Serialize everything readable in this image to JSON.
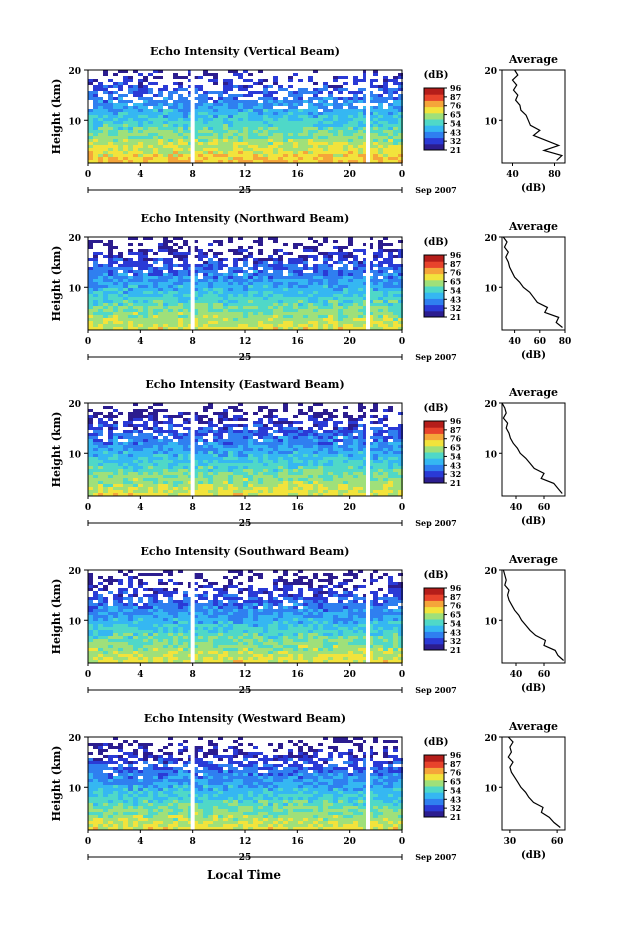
{
  "figure": {
    "x_title": "Local Time",
    "date_label": "Sep 2007",
    "day_label": "25",
    "colorbar_unit": "(dB)",
    "y_label": "Height (km)",
    "avg_title": "Average",
    "avg_xlabel": "(dB)"
  },
  "colors": {
    "scale": [
      "#2c1d8f",
      "#2a3ad6",
      "#2f7ff0",
      "#35b7f2",
      "#4fd8c8",
      "#9fe07a",
      "#f2e33c",
      "#f5a53a",
      "#e8432c",
      "#b51d1a"
    ],
    "line": "#000000",
    "background": "#ffffff"
  },
  "chart_data": [
    {
      "type": "heatmap",
      "title": "Echo Intensity (Vertical Beam)",
      "x_ticks": [
        "0",
        "4",
        "8",
        "12",
        "16",
        "20",
        "0"
      ],
      "xlim": [
        0,
        24
      ],
      "y_ticks": [
        "10",
        "20"
      ],
      "ylim": [
        1.5,
        20
      ],
      "colorbar_ticks": [
        "96",
        "87",
        "76",
        "65",
        "54",
        "43",
        "32",
        "21"
      ],
      "gaps_hours": [
        8.0,
        21.4
      ],
      "average": {
        "x_ticks": [
          "40",
          "80"
        ],
        "xlim": [
          30,
          90
        ],
        "heights": [
          2,
          3,
          4,
          5,
          6,
          7,
          8,
          9,
          10,
          11,
          12,
          13,
          14,
          15,
          16,
          17,
          18,
          19,
          20
        ],
        "values": [
          82,
          87,
          70,
          84,
          72,
          60,
          66,
          57,
          55,
          53,
          48,
          47,
          43,
          45,
          41,
          44,
          40,
          45,
          42
        ]
      }
    },
    {
      "type": "heatmap",
      "title": "Echo Intensity (Northward Beam)",
      "x_ticks": [
        "0",
        "4",
        "8",
        "12",
        "16",
        "20",
        "0"
      ],
      "xlim": [
        0,
        24
      ],
      "y_ticks": [
        "10",
        "20"
      ],
      "ylim": [
        1.5,
        20
      ],
      "colorbar_ticks": [
        "96",
        "87",
        "76",
        "65",
        "54",
        "43",
        "32",
        "21"
      ],
      "gaps_hours": [
        8.0,
        21.4
      ],
      "average": {
        "x_ticks": [
          "40",
          "60",
          "80"
        ],
        "xlim": [
          30,
          80
        ],
        "heights": [
          2,
          3,
          4,
          5,
          6,
          7,
          8,
          9,
          10,
          11,
          12,
          13,
          14,
          15,
          16,
          17,
          18,
          19,
          20
        ],
        "values": [
          78,
          73,
          75,
          64,
          66,
          58,
          55,
          52,
          47,
          44,
          40,
          38,
          36,
          35,
          33,
          35,
          32,
          34,
          31
        ]
      }
    },
    {
      "type": "heatmap",
      "title": "Echo Intensity (Eastward Beam)",
      "x_ticks": [
        "0",
        "4",
        "8",
        "12",
        "16",
        "20",
        "0"
      ],
      "xlim": [
        0,
        24
      ],
      "y_ticks": [
        "10",
        "20"
      ],
      "ylim": [
        1.5,
        20
      ],
      "colorbar_ticks": [
        "96",
        "87",
        "76",
        "65",
        "54",
        "43",
        "32",
        "21"
      ],
      "gaps_hours": [
        8.0,
        21.4
      ],
      "average": {
        "x_ticks": [
          "40",
          "60"
        ],
        "xlim": [
          30,
          75
        ],
        "heights": [
          2,
          3,
          4,
          5,
          6,
          7,
          8,
          9,
          10,
          11,
          12,
          13,
          14,
          15,
          16,
          17,
          18,
          19,
          20
        ],
        "values": [
          73,
          70,
          67,
          58,
          60,
          53,
          50,
          47,
          43,
          41,
          38,
          36,
          35,
          33,
          34,
          31,
          33,
          32,
          30
        ]
      }
    },
    {
      "type": "heatmap",
      "title": "Echo Intensity (Southward Beam)",
      "x_ticks": [
        "0",
        "4",
        "8",
        "12",
        "16",
        "20",
        "0"
      ],
      "xlim": [
        0,
        24
      ],
      "y_ticks": [
        "10",
        "20"
      ],
      "ylim": [
        1.5,
        20
      ],
      "colorbar_ticks": [
        "96",
        "87",
        "76",
        "65",
        "54",
        "43",
        "32",
        "21"
      ],
      "gaps_hours": [
        8.0,
        21.4
      ],
      "average": {
        "x_ticks": [
          "40",
          "60"
        ],
        "xlim": [
          30,
          75
        ],
        "heights": [
          2,
          3,
          4,
          5,
          6,
          7,
          8,
          9,
          10,
          11,
          12,
          13,
          14,
          15,
          16,
          17,
          18,
          19,
          20
        ],
        "values": [
          74,
          70,
          68,
          60,
          61,
          54,
          50,
          47,
          44,
          42,
          39,
          37,
          35,
          34,
          35,
          32,
          33,
          32,
          31
        ]
      }
    },
    {
      "type": "heatmap",
      "title": "Echo Intensity (Westward Beam)",
      "x_ticks": [
        "0",
        "4",
        "8",
        "12",
        "16",
        "20",
        "0"
      ],
      "xlim": [
        0,
        24
      ],
      "y_ticks": [
        "10",
        "20"
      ],
      "ylim": [
        1.5,
        20
      ],
      "colorbar_ticks": [
        "96",
        "87",
        "76",
        "65",
        "54",
        "43",
        "32",
        "21"
      ],
      "gaps_hours": [
        8.0,
        21.4
      ],
      "average": {
        "x_ticks": [
          "30",
          "60"
        ],
        "xlim": [
          25,
          65
        ],
        "heights": [
          2,
          3,
          4,
          5,
          6,
          7,
          8,
          9,
          10,
          11,
          12,
          13,
          14,
          15,
          16,
          17,
          18,
          19,
          20
        ],
        "values": [
          62,
          58,
          55,
          50,
          51,
          45,
          42,
          40,
          37,
          35,
          33,
          31,
          30,
          32,
          29,
          31,
          30,
          32,
          29
        ]
      }
    }
  ]
}
